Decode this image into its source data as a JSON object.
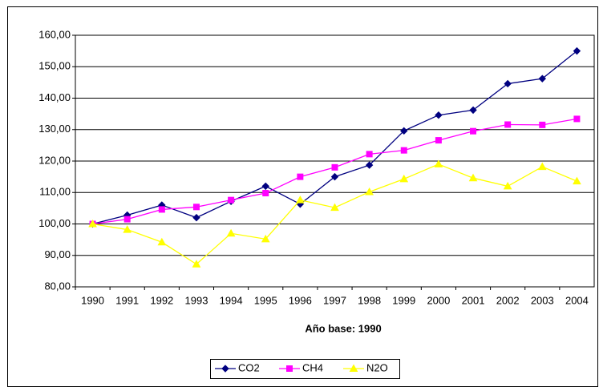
{
  "chart_data": {
    "type": "line",
    "x_label": "Año base: 1990",
    "categories": [
      "1990",
      "1991",
      "1992",
      "1993",
      "1994",
      "1995",
      "1996",
      "1997",
      "1998",
      "1999",
      "2000",
      "2001",
      "2002",
      "2003",
      "2004"
    ],
    "series": [
      {
        "name": "CO2",
        "color": "#000080",
        "marker": "diamond",
        "values": [
          100,
          102.8,
          106,
          102,
          107.2,
          112,
          106.3,
          115,
          118.7,
          129.6,
          134.6,
          136.2,
          144.6,
          146.2,
          155
        ]
      },
      {
        "name": "CH4",
        "color": "#ff00ff",
        "marker": "square",
        "values": [
          100,
          101.5,
          104.6,
          105.4,
          107.6,
          109.8,
          115,
          118,
          122.2,
          123.4,
          126.6,
          129.5,
          131.6,
          131.5,
          133.4
        ]
      },
      {
        "name": "N2O",
        "color": "#ffff00",
        "marker": "triangle",
        "values": [
          100,
          98.2,
          94.2,
          87.2,
          97,
          95.2,
          107.6,
          105.2,
          110.2,
          114.3,
          119,
          114.6,
          112,
          118.2,
          113.6
        ]
      }
    ],
    "ylim": [
      80,
      160
    ],
    "yticks": [
      {
        "value": 80,
        "label": "80,00"
      },
      {
        "value": 90,
        "label": "90,00"
      },
      {
        "value": 100,
        "label": "100,00"
      },
      {
        "value": 110,
        "label": "110,00"
      },
      {
        "value": 120,
        "label": "120,00"
      },
      {
        "value": 130,
        "label": "130,00"
      },
      {
        "value": 140,
        "label": "140,00"
      },
      {
        "value": 150,
        "label": "150,00"
      },
      {
        "value": 160,
        "label": "160,00"
      }
    ],
    "grid": true,
    "legend": "bottom"
  }
}
